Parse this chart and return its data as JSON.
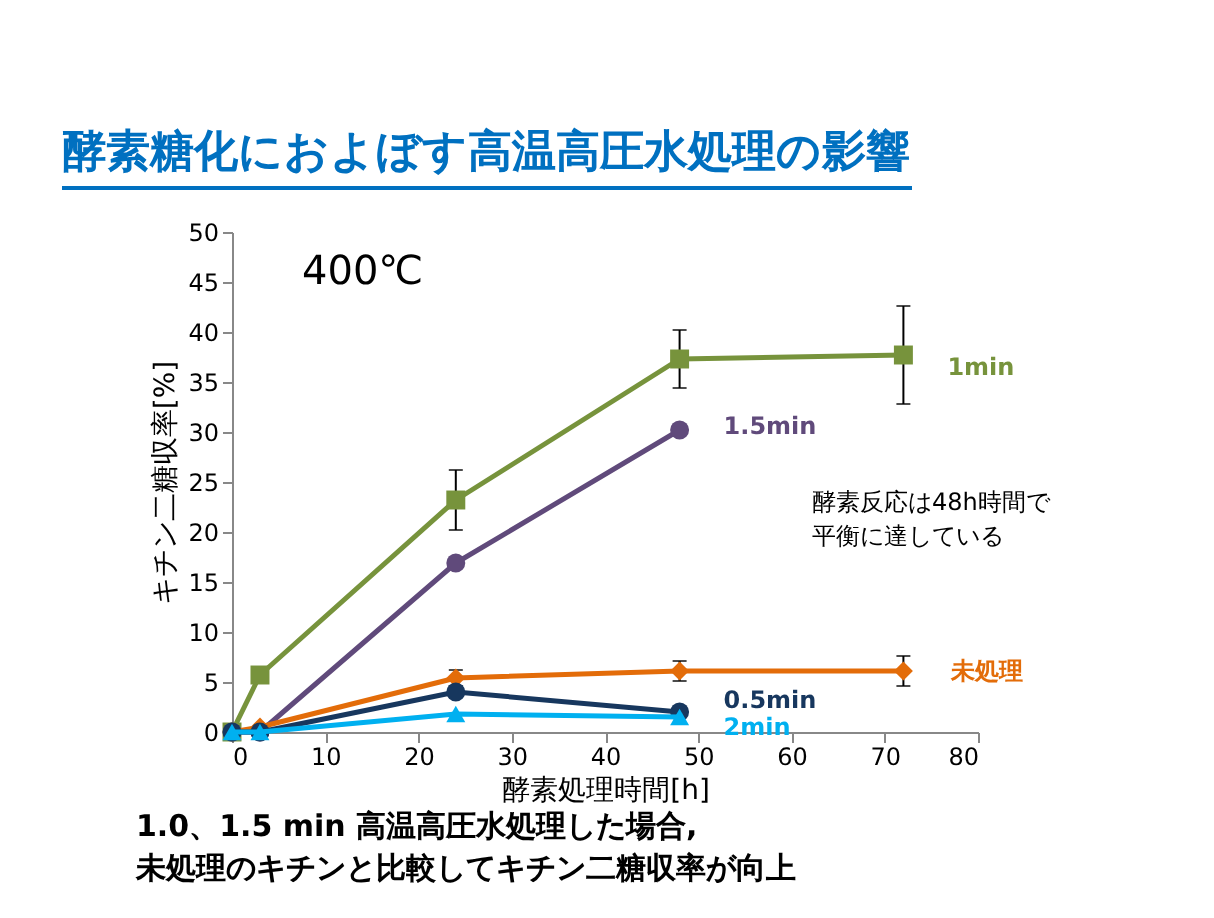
{
  "chart_data": {
    "type": "line",
    "title": "酵素糖化におよぼす高温高圧水処理の影響",
    "xlabel": "酵素処理時間[h]",
    "ylabel": "キチン二糖収率[%]",
    "xlim": [
      0,
      80
    ],
    "xticks": [
      0,
      10,
      20,
      30,
      40,
      50,
      60,
      70,
      80
    ],
    "ylim": [
      0,
      50
    ],
    "yticks": [
      0,
      5,
      10,
      15,
      20,
      25,
      30,
      35,
      40,
      45,
      50
    ],
    "grid": false,
    "series": [
      {
        "name": "1min",
        "color": "#77933c",
        "marker": "square",
        "x": [
          0,
          3,
          24,
          48,
          72
        ],
        "values": [
          0,
          5.7,
          23.2,
          37.3,
          37.7
        ],
        "errors": [
          null,
          null,
          3,
          2.9,
          4.9
        ]
      },
      {
        "name": "1.5min",
        "color": "#604a7b",
        "marker": "circle",
        "x": [
          0,
          3,
          24,
          48
        ],
        "values": [
          0,
          0,
          16.9,
          30.2
        ]
      },
      {
        "name": "未処理",
        "color": "#e36c09",
        "marker": "diamond",
        "x": [
          0,
          3,
          24,
          48,
          72
        ],
        "values": [
          0,
          0.5,
          5.4,
          6.1,
          6.1
        ],
        "errors": [
          null,
          null,
          0.8,
          1,
          1.5
        ]
      },
      {
        "name": "0.5min",
        "color": "#17375e",
        "marker": "circle",
        "x": [
          0,
          3,
          24,
          48
        ],
        "values": [
          0,
          0,
          4.0,
          2.0
        ]
      },
      {
        "name": "2min",
        "color": "#00b0f0",
        "marker": "triangle",
        "x": [
          0,
          3,
          24,
          48
        ],
        "values": [
          0,
          0,
          1.8,
          1.5
        ]
      }
    ],
    "annotations": [
      "400℃",
      "酵素反応は48h時間で平衡に達している",
      "1.0、1.5 min 高温高圧水処理した場合,未処理のキチンと比較してキチン二糖収率が向上"
    ]
  }
}
